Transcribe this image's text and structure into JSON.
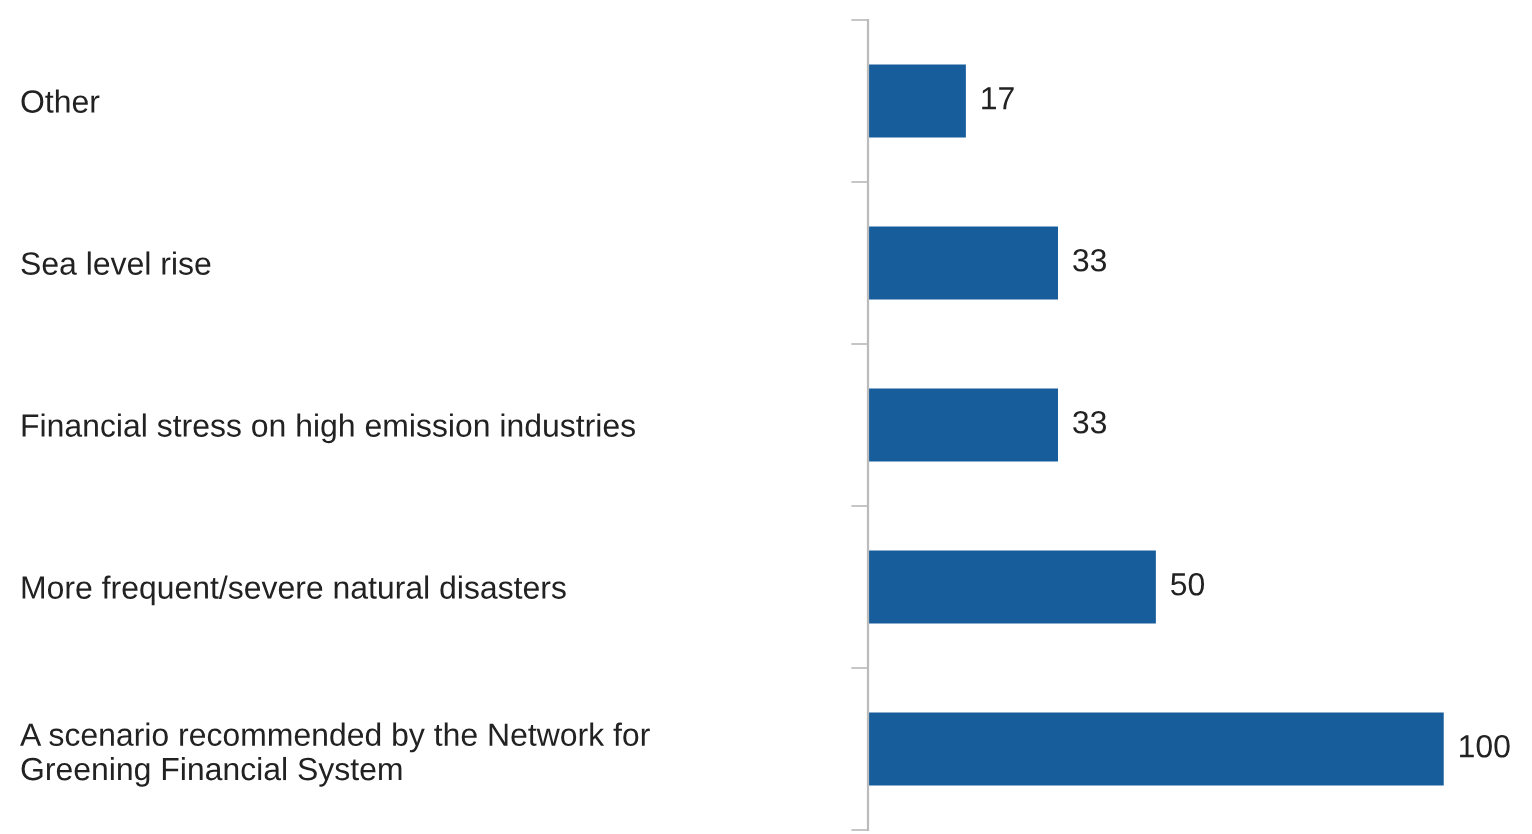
{
  "chart_data": {
    "type": "bar",
    "orientation": "horizontal",
    "categories": [
      "Other",
      "Sea level rise",
      "Financial stress on high emission industries",
      "More frequent/severe natural disasters",
      "A scenario recommended by the Network for\nGreening Financial System"
    ],
    "values": [
      17,
      33,
      33,
      50,
      100
    ],
    "color": "#175d9c",
    "data_labels": true,
    "tick_labels": "y",
    "grid": false,
    "legend": false
  }
}
